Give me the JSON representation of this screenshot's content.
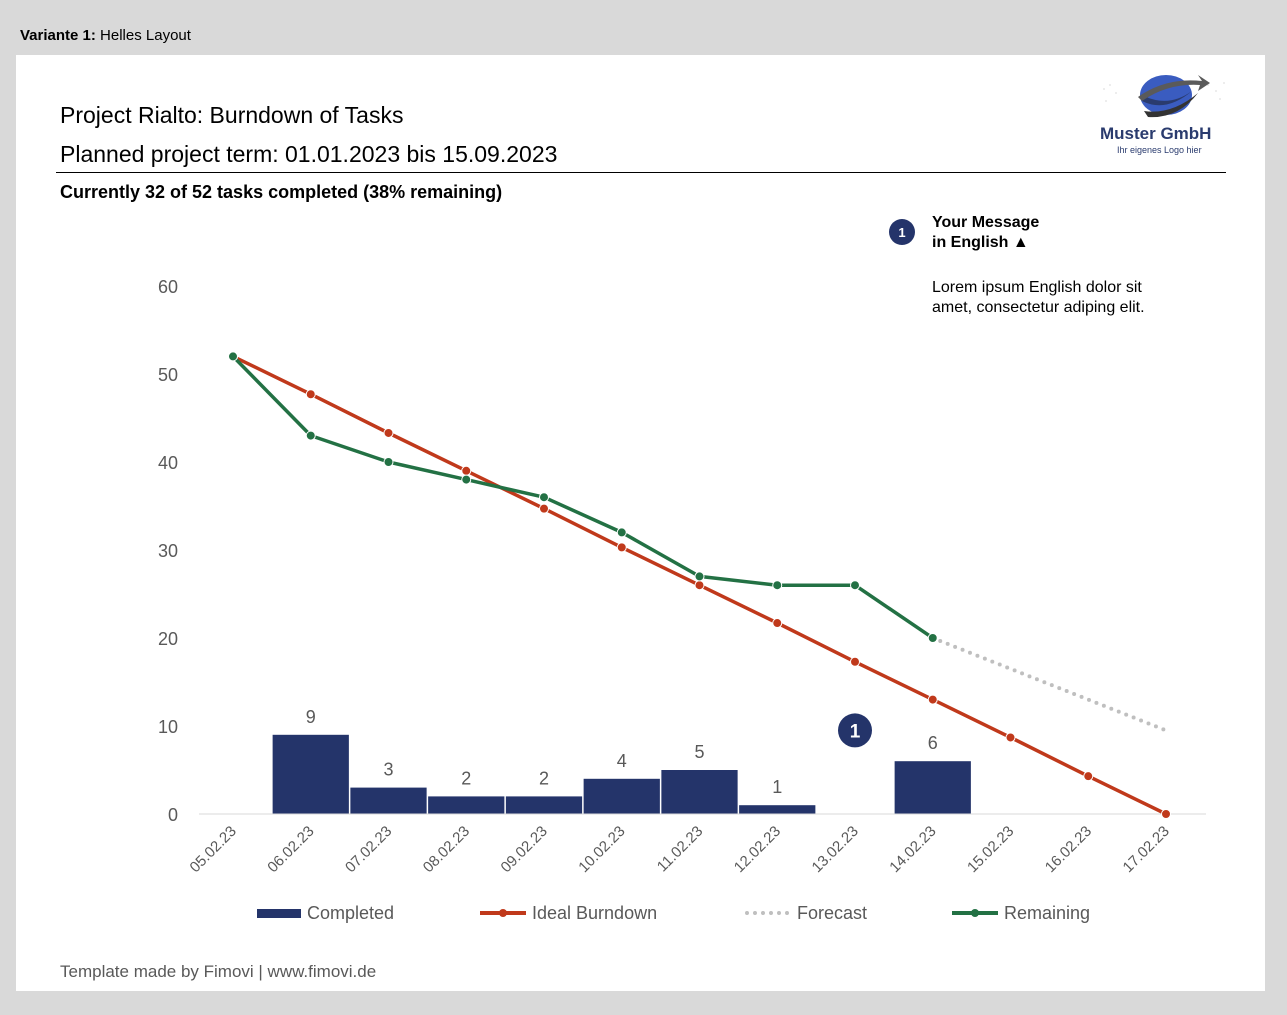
{
  "header": {
    "variant_label": "Variante 1:",
    "variant_text": "Helles Layout"
  },
  "report": {
    "title": "Project Rialto: Burndown of Tasks",
    "term": "Planned project term: 01.01.2023 bis 15.09.2023",
    "status": "Currently 32 of 52 tasks completed (38% remaining)"
  },
  "logo": {
    "name": "Muster GmbH",
    "tagline": "Ihr eigenes Logo hier",
    "icon": "globe-swoosh-logo",
    "color": "#2a3b6e"
  },
  "message": {
    "badge": "1",
    "title_line1": "Your Message",
    "title_line2": "in English ▲",
    "body_line1": "Lorem ipsum English dolor sit",
    "body_line2": "amet, consectetur adiping elit."
  },
  "footer": {
    "text": "Template made by Fimovi  |  www.fimovi.de"
  },
  "colors": {
    "completed": "#24346a",
    "ideal": "#c0391b",
    "forecast": "#bfbfbf",
    "remaining": "#237144",
    "axis_text": "#595959"
  },
  "chart_data": {
    "type": "bar",
    "categories": [
      "05.02.23",
      "06.02.23",
      "07.02.23",
      "08.02.23",
      "09.02.23",
      "10.02.23",
      "11.02.23",
      "12.02.23",
      "13.02.23",
      "14.02.23",
      "15.02.23",
      "16.02.23",
      "17.02.23"
    ],
    "ylim": [
      0,
      60
    ],
    "yticks": [
      0,
      10,
      20,
      30,
      40,
      50,
      60
    ],
    "grid": false,
    "legend_position": "bottom",
    "annotation": {
      "label": "1",
      "category": "13.02.23",
      "y": 9.5
    },
    "series": [
      {
        "name": "Completed",
        "type": "bar",
        "values": [
          null,
          9,
          3,
          2,
          2,
          4,
          5,
          1,
          null,
          6,
          null,
          null,
          null
        ],
        "data_labels": true
      },
      {
        "name": "Ideal Burndown",
        "type": "line",
        "values": [
          52,
          47.7,
          43.3,
          39,
          34.7,
          30.3,
          26,
          21.7,
          17.3,
          13,
          8.7,
          4.3,
          0
        ]
      },
      {
        "name": "Forecast",
        "type": "line",
        "style": "dotted",
        "values": [
          null,
          null,
          null,
          null,
          null,
          null,
          null,
          null,
          null,
          20,
          16.5,
          13,
          9.5
        ]
      },
      {
        "name": "Remaining",
        "type": "line",
        "values": [
          52,
          43,
          40,
          38,
          36,
          32,
          27,
          26,
          26,
          20,
          null,
          null,
          null
        ]
      }
    ]
  }
}
